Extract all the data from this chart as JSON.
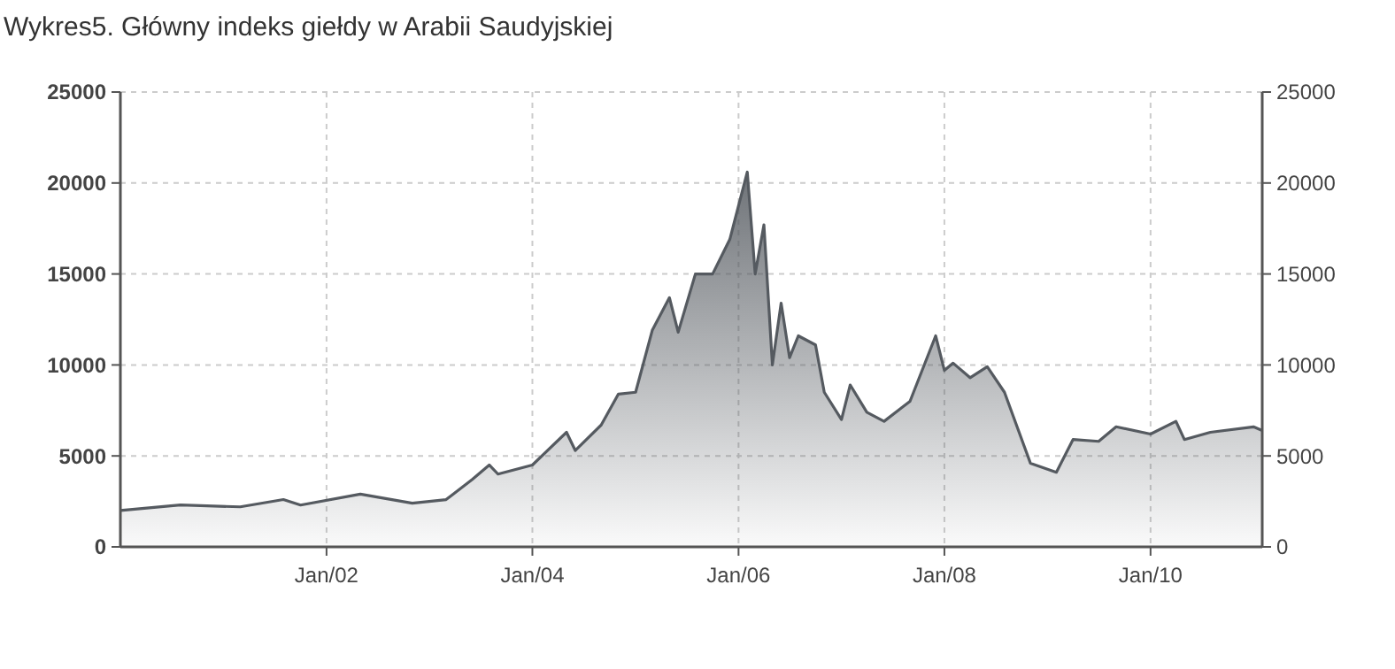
{
  "chart_data": {
    "type": "area",
    "title": "Wykres5. Główny indeks giełdy w Arabii Saudyjskiej",
    "x": [
      "2000-01",
      "2000-08",
      "2001-03",
      "2001-08",
      "2001-10",
      "2002-05",
      "2002-11",
      "2003-03",
      "2003-06",
      "2003-08",
      "2003-09",
      "2004-01",
      "2004-05",
      "2004-06",
      "2004-09",
      "2004-11",
      "2005-01",
      "2005-03",
      "2005-05",
      "2005-06",
      "2005-08",
      "2005-10",
      "2005-12",
      "2006-02",
      "2006-03",
      "2006-04",
      "2006-05",
      "2006-06",
      "2006-07",
      "2006-08",
      "2006-10",
      "2006-11",
      "2007-01",
      "2007-02",
      "2007-04",
      "2007-06",
      "2007-09",
      "2007-12",
      "2008-01",
      "2008-02",
      "2008-04",
      "2008-06",
      "2008-08",
      "2008-11",
      "2009-02",
      "2009-04",
      "2009-07",
      "2009-09",
      "2010-01",
      "2010-04",
      "2010-05",
      "2010-08",
      "2011-01",
      "2011-02"
    ],
    "series": [
      {
        "color": "#555a60",
        "values": [
          2000,
          2300,
          2200,
          2600,
          2300,
          2900,
          2400,
          2600,
          3700,
          4500,
          4000,
          4500,
          6300,
          5300,
          6700,
          8400,
          8500,
          11900,
          13700,
          11800,
          15000,
          15000,
          16900,
          20600,
          15000,
          17700,
          10000,
          13400,
          10400,
          11600,
          11100,
          8500,
          7000,
          8900,
          7400,
          6900,
          8000,
          11600,
          9700,
          10100,
          9300,
          9900,
          8500,
          4600,
          4100,
          5900,
          5800,
          6600,
          6200,
          6900,
          5900,
          6300,
          6600,
          6400
        ]
      }
    ],
    "xlim": [
      "2000-01",
      "2011-02"
    ],
    "xticks": [
      {
        "value": "2002-01",
        "label": "Jan/02"
      },
      {
        "value": "2004-01",
        "label": "Jan/04"
      },
      {
        "value": "2006-01",
        "label": "Jan/06"
      },
      {
        "value": "2008-01",
        "label": "Jan/08"
      },
      {
        "value": "2010-01",
        "label": "Jan/10"
      }
    ],
    "ylim": [
      0,
      25000
    ],
    "yticks": [
      0,
      5000,
      10000,
      15000,
      20000,
      25000
    ],
    "y2lim": [
      0,
      25000
    ],
    "y2ticks": [
      0,
      5000,
      10000,
      15000,
      20000,
      25000
    ],
    "grid": true,
    "line_style": "solid"
  }
}
